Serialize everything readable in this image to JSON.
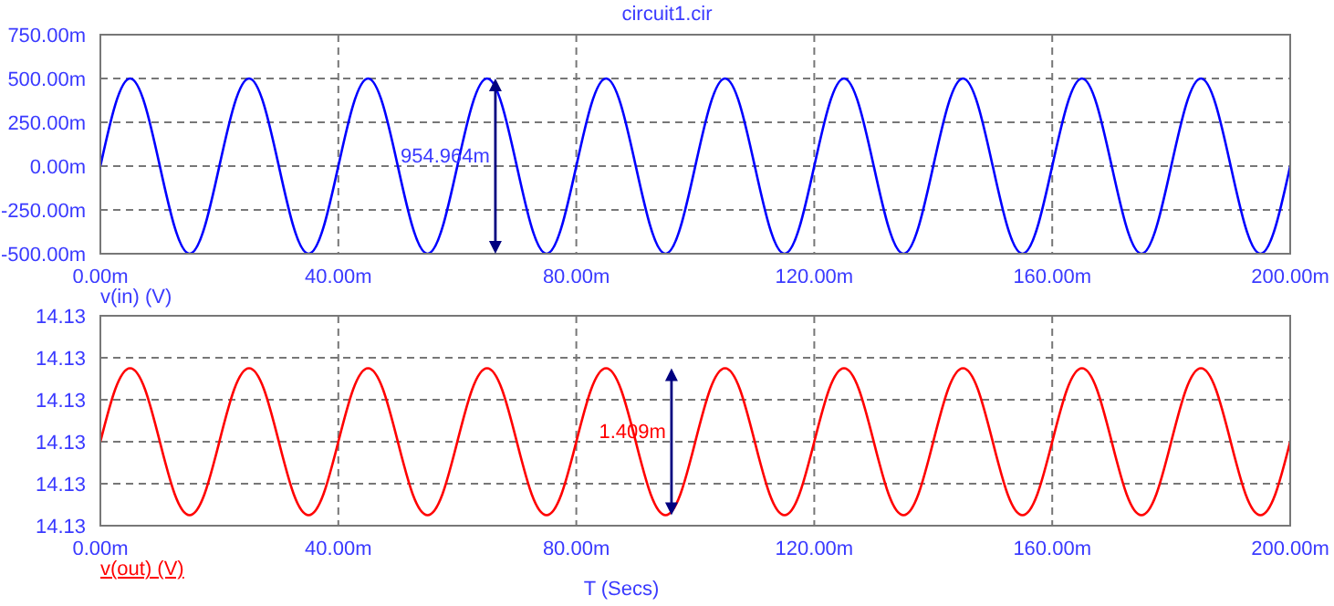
{
  "chart_data": [
    {
      "type": "line",
      "title": "circuit1.cir",
      "legend": "bottom left",
      "x": [
        0,
        2.5,
        5,
        7.5,
        10,
        12.5,
        15,
        17.5,
        20,
        22.5,
        25,
        27.5,
        30,
        32.5,
        35,
        37.5,
        40,
        42.5,
        45,
        47.5,
        50,
        52.5,
        55,
        57.5,
        60,
        62.5,
        65,
        67.5,
        70,
        72.5,
        75,
        77.5,
        80,
        82.5,
        85,
        87.5,
        90,
        92.5,
        95,
        97.5,
        100,
        102.5,
        105,
        107.5,
        110,
        112.5,
        115,
        117.5,
        120,
        122.5,
        125,
        127.5,
        130,
        132.5,
        135,
        137.5,
        140,
        142.5,
        145,
        147.5,
        150,
        152.5,
        155,
        157.5,
        160,
        162.5,
        165,
        167.5,
        170,
        172.5,
        175,
        177.5,
        180,
        182.5,
        185,
        187.5,
        190,
        192.5,
        195,
        197.5,
        200
      ],
      "series": [
        {
          "name": "v(in) (V)",
          "color": "#0000ff",
          "values": [
            0,
            350,
            500,
            350,
            0,
            -350,
            -500,
            -350,
            0,
            350,
            500,
            350,
            0,
            -350,
            -500,
            -350,
            0,
            350,
            500,
            350,
            0,
            -350,
            -500,
            -350,
            0,
            350,
            500,
            350,
            0,
            -350,
            -500,
            -350,
            0,
            350,
            500,
            350,
            0,
            -350,
            -500,
            -350,
            0,
            350,
            500,
            350,
            0,
            -350,
            -500,
            -350,
            0,
            350,
            500,
            350,
            0,
            -350,
            -500,
            -350,
            0,
            350,
            500,
            350,
            0,
            -350,
            -500,
            -350,
            0,
            350,
            500,
            350,
            0,
            -350,
            -500,
            -350,
            0,
            350,
            500,
            350,
            0,
            -350,
            -500,
            -350,
            0
          ]
        }
      ],
      "xlim": [
        0,
        200
      ],
      "xticks": [
        {
          "value": 0,
          "label": "0.00m"
        },
        {
          "value": 40,
          "label": "40.00m"
        },
        {
          "value": 80,
          "label": "80.00m"
        },
        {
          "value": 120,
          "label": "120.00m"
        },
        {
          "value": 160,
          "label": "160.00m"
        },
        {
          "value": 200,
          "label": "200.00m"
        }
      ],
      "ylim": [
        -500,
        750
      ],
      "yticks": [
        {
          "value": -500,
          "label": "-500.00m"
        },
        {
          "value": -250,
          "label": "-250.00m"
        },
        {
          "value": 0,
          "label": "0.00m"
        },
        {
          "value": 250,
          "label": "250.00m"
        },
        {
          "value": 500,
          "label": "500.00m"
        },
        {
          "value": 750,
          "label": "750.00m"
        }
      ],
      "grid": true,
      "marker": "none",
      "line_style": "solid",
      "annotations": [
        "954.964m"
      ]
    },
    {
      "type": "line",
      "legend": "bottom left",
      "xlabel": "T (Secs)",
      "x": [
        0,
        2.5,
        5,
        7.5,
        10,
        12.5,
        15,
        17.5,
        20,
        22.5,
        25,
        27.5,
        30,
        32.5,
        35,
        37.5,
        40,
        42.5,
        45,
        47.5,
        50,
        52.5,
        55,
        57.5,
        60,
        62.5,
        65,
        67.5,
        70,
        72.5,
        75,
        77.5,
        80,
        82.5,
        85,
        87.5,
        90,
        92.5,
        95,
        97.5,
        100,
        102.5,
        105,
        107.5,
        110,
        112.5,
        115,
        117.5,
        120,
        122.5,
        125,
        127.5,
        130,
        132.5,
        135,
        137.5,
        140,
        142.5,
        145,
        147.5,
        150,
        152.5,
        155,
        157.5,
        160,
        162.5,
        165,
        167.5,
        170,
        172.5,
        175,
        177.5,
        180,
        182.5,
        185,
        187.5,
        190,
        192.5,
        195,
        197.5,
        200
      ],
      "series": [
        {
          "name": "v(out) (V)",
          "color": "#ff0000",
          "values": [
            14.13,
            14.1305,
            14.1307,
            14.1305,
            14.13,
            14.1295,
            14.1293,
            14.1295,
            14.13,
            14.1305,
            14.1307,
            14.1305,
            14.13,
            14.1295,
            14.1293,
            14.1295,
            14.13,
            14.1305,
            14.1307,
            14.1305,
            14.13,
            14.1295,
            14.1293,
            14.1295,
            14.13,
            14.1305,
            14.1307,
            14.1305,
            14.13,
            14.1295,
            14.1293,
            14.1295,
            14.13,
            14.1305,
            14.1307,
            14.1305,
            14.13,
            14.1295,
            14.1293,
            14.1295,
            14.13,
            14.1305,
            14.1307,
            14.1305,
            14.13,
            14.1295,
            14.1293,
            14.1295,
            14.13,
            14.1305,
            14.1307,
            14.1305,
            14.13,
            14.1295,
            14.1293,
            14.1295,
            14.13,
            14.1305,
            14.1307,
            14.1305,
            14.13,
            14.1295,
            14.1293,
            14.1295,
            14.13,
            14.1305,
            14.1307,
            14.1305,
            14.13,
            14.1295,
            14.1293,
            14.1295,
            14.13,
            14.1305,
            14.1307,
            14.1305,
            14.13,
            14.1295,
            14.1293,
            14.1295,
            14.13
          ]
        }
      ],
      "xlim": [
        0,
        200
      ],
      "xticks": [
        {
          "value": 0,
          "label": "0.00m"
        },
        {
          "value": 40,
          "label": "40.00m"
        },
        {
          "value": 80,
          "label": "80.00m"
        },
        {
          "value": 120,
          "label": "120.00m"
        },
        {
          "value": 160,
          "label": "160.00m"
        },
        {
          "value": 200,
          "label": "200.00m"
        }
      ],
      "ylim": [
        14.1292,
        14.1312
      ],
      "yticks": [
        {
          "value": 14.1292,
          "label": "14.13"
        },
        {
          "value": 14.1296,
          "label": "14.13"
        },
        {
          "value": 14.13,
          "label": "14.13"
        },
        {
          "value": 14.1304,
          "label": "14.13"
        },
        {
          "value": 14.1308,
          "label": "14.13"
        },
        {
          "value": 14.1312,
          "label": "14.13"
        }
      ],
      "grid": true,
      "marker": "none",
      "line_style": "solid",
      "annotations": [
        "1.409m"
      ]
    }
  ]
}
